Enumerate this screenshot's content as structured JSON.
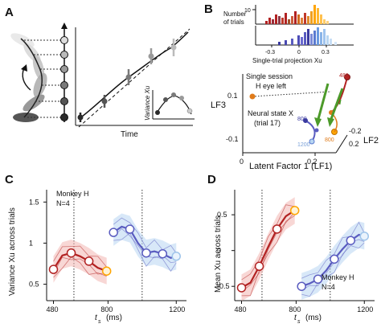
{
  "figure": {
    "panel_labels": {
      "a": "A",
      "b": "B",
      "c": "C",
      "d": "D"
    },
    "colors": {
      "red": "#b22222",
      "light_red": "#f2b6b2",
      "orange": "#ffa500",
      "blue": "#5a5cc0",
      "light_blue": "#b8d6f2",
      "navy": "#3a3aa0",
      "green": "#4c9a2a",
      "dark_orange": "#e07b1a",
      "gray": "#8a8a8a"
    }
  },
  "panel_a": {
    "x_axis_label": "Time",
    "inset_y_label": "Variance Xu",
    "dot_column_icon": "timeline-dot-column",
    "rotation_arrow_icon": "curved-arrow-icon",
    "gray_states": [
      "#2a2a2a",
      "#555555",
      "#7a7a7a",
      "#9a9a9a",
      "#bbbbbb",
      "#dddddd"
    ]
  },
  "panel_b": {
    "histogram_y_label_1": "Number",
    "histogram_y_label_2": "of trials",
    "histogram_x_label": "Single-trial projection Xu",
    "histogram_ticks": [
      "-0.3",
      "0",
      "0.3"
    ],
    "histogram_ytick": "10",
    "session_label_1": "Single session",
    "session_label_2": "H eye left",
    "neural_state_label_1": "Neural state X",
    "neural_state_label_2": "(trial 17)",
    "u_label": "u",
    "time_labels": [
      "480",
      "800",
      "800",
      "1200"
    ],
    "axis_lf1": "Latent Factor 1 (LF1)",
    "axis_lf2": "LF2",
    "axis_lf3": "LF3",
    "lf1_ticks": [
      "0",
      "0.2"
    ],
    "lf3_ticks": [
      "0.1",
      "-0.1"
    ],
    "lf2_ticks": [
      "-0.2",
      "0.2"
    ]
  },
  "panel_c": {
    "ylabel": "Variance Xu across trials",
    "xlabel": "t_s (ms)",
    "xlabel_main": "t",
    "xlabel_sub": "s",
    "xlabel_unit": "(ms)",
    "annotation_1": "Monkey H",
    "annotation_2": "N=4",
    "xticks": [
      "480",
      "800",
      "1200"
    ],
    "yticks": [
      "1.5",
      "1",
      "0.5"
    ]
  },
  "panel_d": {
    "ylabel": "Mean Xu across trials",
    "xlabel": "t_s (ms)",
    "xlabel_main": "t",
    "xlabel_sub": "s",
    "xlabel_unit": "(ms)",
    "annotation_1": "Monkey H",
    "annotation_2": "N=4",
    "xticks": [
      "480",
      "800",
      "1200"
    ],
    "yticks": [
      "0.5",
      "0",
      "-0.5"
    ]
  },
  "chart_data": [
    {
      "id": "C",
      "type": "line",
      "xlabel": "t_s (ms)",
      "ylabel": "Variance Xu across trials",
      "xlim": [
        440,
        1260
      ],
      "ylim": [
        0.3,
        1.65
      ],
      "xticks": [
        480,
        800,
        1200
      ],
      "yticks": [
        0.5,
        1,
        1.5
      ],
      "vlines": [
        600,
        1000
      ],
      "series": [
        {
          "color": "red",
          "x": [
            480,
            532,
            584,
            636,
            688,
            740,
            792
          ],
          "y": [
            0.68,
            0.85,
            0.88,
            0.84,
            0.78,
            0.7,
            0.66
          ]
        },
        {
          "color": "blue",
          "x": [
            832,
            880,
            928,
            976,
            1024,
            1072,
            1120,
            1168,
            1200
          ],
          "y": [
            1.13,
            1.2,
            1.17,
            1.0,
            0.88,
            0.9,
            0.87,
            0.82,
            0.84
          ]
        }
      ]
    },
    {
      "id": "D",
      "type": "line",
      "xlabel": "t_s (ms)",
      "ylabel": "Mean Xu across trials",
      "xlim": [
        440,
        1260
      ],
      "ylim": [
        -0.7,
        0.85
      ],
      "xticks": [
        480,
        800,
        1200
      ],
      "yticks": [
        -0.5,
        0,
        0.5
      ],
      "vlines": [
        600,
        1000
      ],
      "series": [
        {
          "color": "red",
          "x": [
            480,
            532,
            584,
            636,
            688,
            740,
            792
          ],
          "y": [
            -0.52,
            -0.45,
            -0.22,
            0.05,
            0.3,
            0.48,
            0.56
          ]
        },
        {
          "color": "blue",
          "x": [
            832,
            880,
            928,
            976,
            1024,
            1072,
            1120,
            1168,
            1200
          ],
          "y": [
            -0.5,
            -0.46,
            -0.4,
            -0.28,
            -0.12,
            0.02,
            0.14,
            0.22,
            0.2
          ]
        }
      ]
    }
  ]
}
